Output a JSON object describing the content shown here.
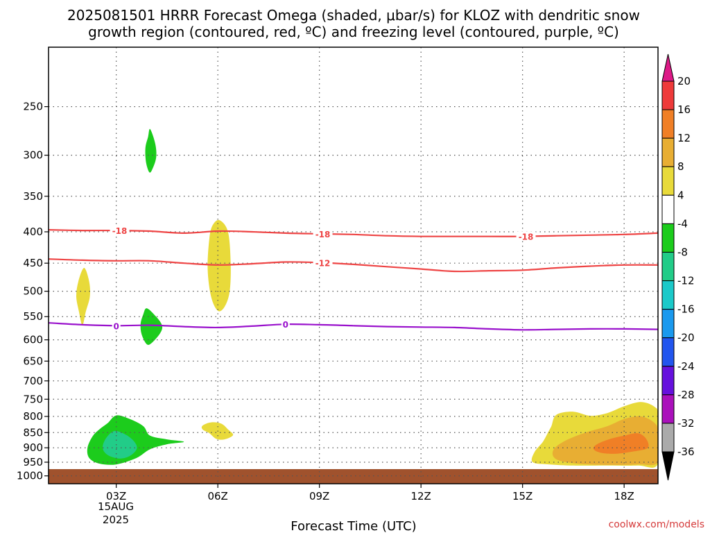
{
  "chart_data": {
    "type": "heatmap",
    "title_line1": "2025081501 HRRR Forecast Omega (shaded, μbar/s) for KLOZ with dendritic snow",
    "title_line2": "growth region (contoured, red, ºC) and freezing level (contoured, purple, ºC)",
    "xlabel": "Forecast Time (UTC)",
    "credit": "coolwx.com/models",
    "x_ticks": [
      {
        "h": 3,
        "label": "03Z"
      },
      {
        "h": 6,
        "label": "06Z"
      },
      {
        "h": 9,
        "label": "09Z"
      },
      {
        "h": 12,
        "label": "12Z"
      },
      {
        "h": 15,
        "label": "15Z"
      },
      {
        "h": 18,
        "label": "18Z"
      }
    ],
    "x_date_lines": [
      "15AUG",
      "2025"
    ],
    "xlim": [
      1,
      19
    ],
    "y_ticks": [
      250,
      300,
      350,
      400,
      450,
      500,
      550,
      600,
      650,
      700,
      750,
      800,
      850,
      900,
      950,
      1000
    ],
    "y_axis_log": true,
    "ylim_hpa": [
      200,
      1030
    ],
    "grid": true,
    "ground_level_hpa": 975,
    "colorbar": {
      "labels": [
        "20",
        "16",
        "12",
        "8",
        "4",
        "-4",
        "-8",
        "-12",
        "-16",
        "-20",
        "-24",
        "-28",
        "-32",
        "-36"
      ],
      "colors": [
        "#dd1a87",
        "#ee3a3a",
        "#f07f26",
        "#e8ae33",
        "#e8da3a",
        "#ffffff",
        "#1ccc1c",
        "#22cc88",
        "#1bc9c9",
        "#1a99ee",
        "#2255ee",
        "#6611dd",
        "#aa11bb",
        "#aaaaaa",
        "#000000"
      ]
    },
    "contours": [
      {
        "name": "-18",
        "color": "#ee4444",
        "points": [
          [
            1,
            397
          ],
          [
            2,
            398
          ],
          [
            3,
            398
          ],
          [
            4,
            399
          ],
          [
            5,
            402
          ],
          [
            6,
            399
          ],
          [
            7,
            400
          ],
          [
            8,
            402
          ],
          [
            9,
            403
          ],
          [
            10,
            404
          ],
          [
            11,
            406
          ],
          [
            12,
            407
          ],
          [
            13,
            407
          ],
          [
            14,
            407
          ],
          [
            15,
            407
          ],
          [
            16,
            406
          ],
          [
            17,
            405
          ],
          [
            18,
            404
          ],
          [
            19,
            402
          ]
        ],
        "labels": [
          {
            "h": 3.1,
            "text": "-18"
          },
          {
            "h": 9.1,
            "text": "-18"
          },
          {
            "h": 15.1,
            "text": "-18"
          }
        ]
      },
      {
        "name": "-12",
        "color": "#ee4444",
        "points": [
          [
            1,
            443
          ],
          [
            2,
            445
          ],
          [
            3,
            446
          ],
          [
            4,
            446
          ],
          [
            5,
            450
          ],
          [
            6,
            453
          ],
          [
            7,
            451
          ],
          [
            8,
            448
          ],
          [
            9,
            449
          ],
          [
            10,
            452
          ],
          [
            11,
            456
          ],
          [
            12,
            460
          ],
          [
            13,
            464
          ],
          [
            14,
            463
          ],
          [
            15,
            462
          ],
          [
            16,
            458
          ],
          [
            17,
            455
          ],
          [
            18,
            453
          ],
          [
            19,
            453
          ]
        ],
        "labels": [
          {
            "h": 9.1,
            "text": "-12"
          }
        ]
      },
      {
        "name": "0",
        "color": "#9911cc",
        "points": [
          [
            1,
            563
          ],
          [
            2,
            567
          ],
          [
            3,
            569
          ],
          [
            4,
            568
          ],
          [
            5,
            571
          ],
          [
            6,
            573
          ],
          [
            7,
            570
          ],
          [
            8,
            566
          ],
          [
            9,
            567
          ],
          [
            10,
            569
          ],
          [
            11,
            571
          ],
          [
            12,
            572
          ],
          [
            13,
            573
          ],
          [
            14,
            576
          ],
          [
            15,
            578
          ],
          [
            16,
            577
          ],
          [
            17,
            576
          ],
          [
            18,
            576
          ],
          [
            19,
            577
          ]
        ],
        "labels": [
          {
            "h": 3.0,
            "text": "0"
          },
          {
            "h": 8.0,
            "text": "0"
          }
        ]
      }
    ],
    "shaded_regions": [
      {
        "value": 4,
        "color": "#e8da3a",
        "points": [
          [
            2.05,
            458
          ],
          [
            2.2,
            482
          ],
          [
            2.22,
            510
          ],
          [
            2.1,
            540
          ],
          [
            2.0,
            568
          ],
          [
            1.9,
            540
          ],
          [
            1.82,
            510
          ],
          [
            1.88,
            482
          ]
        ]
      },
      {
        "value": 4,
        "color": "#e8da3a",
        "points": [
          [
            6.05,
            383
          ],
          [
            6.3,
            400
          ],
          [
            6.38,
            450
          ],
          [
            6.35,
            500
          ],
          [
            6.2,
            530
          ],
          [
            6.0,
            538
          ],
          [
            5.8,
            510
          ],
          [
            5.7,
            460
          ],
          [
            5.75,
            410
          ],
          [
            5.85,
            390
          ]
        ]
      },
      {
        "value": 4,
        "color": "#e8da3a",
        "points": [
          [
            5.55,
            828
          ],
          [
            5.8,
            818
          ],
          [
            6.1,
            822
          ],
          [
            6.3,
            840
          ],
          [
            6.45,
            858
          ],
          [
            6.2,
            872
          ],
          [
            5.95,
            870
          ],
          [
            5.75,
            852
          ],
          [
            5.55,
            840
          ]
        ]
      },
      {
        "value": -4,
        "color": "#1ccc1c",
        "points": [
          [
            4.0,
            272
          ],
          [
            4.15,
            287
          ],
          [
            4.18,
            302
          ],
          [
            4.08,
            315
          ],
          [
            3.98,
            320
          ],
          [
            3.88,
            308
          ],
          [
            3.86,
            292
          ],
          [
            3.94,
            280
          ]
        ]
      },
      {
        "value": -4,
        "color": "#1ccc1c",
        "points": [
          [
            3.9,
            533
          ],
          [
            4.15,
            548
          ],
          [
            4.35,
            568
          ],
          [
            4.3,
            585
          ],
          [
            4.05,
            607
          ],
          [
            3.9,
            610
          ],
          [
            3.75,
            588
          ],
          [
            3.72,
            565
          ],
          [
            3.8,
            545
          ]
        ]
      },
      {
        "value": -4,
        "color": "#1ccc1c",
        "points": [
          [
            2.75,
            820
          ],
          [
            3.0,
            797
          ],
          [
            3.4,
            808
          ],
          [
            3.8,
            830
          ],
          [
            4.0,
            860
          ],
          [
            4.5,
            872
          ],
          [
            5.0,
            880
          ],
          [
            4.5,
            888
          ],
          [
            4.0,
            905
          ],
          [
            3.6,
            935
          ],
          [
            3.0,
            958
          ],
          [
            2.5,
            955
          ],
          [
            2.2,
            935
          ],
          [
            2.15,
            900
          ],
          [
            2.3,
            862
          ],
          [
            2.5,
            840
          ]
        ]
      },
      {
        "value": -8,
        "color": "#22cc88",
        "points": [
          [
            2.95,
            845
          ],
          [
            3.3,
            858
          ],
          [
            3.55,
            882
          ],
          [
            3.6,
            905
          ],
          [
            3.4,
            928
          ],
          [
            3.1,
            937
          ],
          [
            2.75,
            925
          ],
          [
            2.6,
            900
          ],
          [
            2.7,
            868
          ]
        ]
      },
      {
        "value": 4,
        "color": "#e8da3a",
        "points": [
          [
            15.85,
            830
          ],
          [
            16.0,
            795
          ],
          [
            16.5,
            786
          ],
          [
            17.0,
            798
          ],
          [
            17.5,
            790
          ],
          [
            18.0,
            770
          ],
          [
            18.5,
            758
          ],
          [
            18.9,
            772
          ],
          [
            19.0,
            800
          ],
          [
            19.0,
            955
          ],
          [
            18.4,
            962
          ],
          [
            17.5,
            962
          ],
          [
            16.5,
            962
          ],
          [
            15.8,
            958
          ],
          [
            15.3,
            950
          ],
          [
            15.35,
            915
          ],
          [
            15.6,
            880
          ],
          [
            15.75,
            850
          ]
        ]
      },
      {
        "value": 8,
        "color": "#e8ae33",
        "points": [
          [
            16.2,
            880
          ],
          [
            16.8,
            852
          ],
          [
            17.5,
            830
          ],
          [
            18.0,
            808
          ],
          [
            18.5,
            800
          ],
          [
            18.9,
            820
          ],
          [
            19.0,
            850
          ],
          [
            19.0,
            950
          ],
          [
            18.4,
            958
          ],
          [
            17.5,
            960
          ],
          [
            16.6,
            955
          ],
          [
            16.0,
            940
          ],
          [
            15.9,
            910
          ]
        ]
      },
      {
        "value": 12,
        "color": "#f07f26",
        "points": [
          [
            17.2,
            888
          ],
          [
            17.6,
            870
          ],
          [
            18.0,
            860
          ],
          [
            18.4,
            852
          ],
          [
            18.65,
            870
          ],
          [
            18.7,
            900
          ],
          [
            18.3,
            912
          ],
          [
            17.8,
            920
          ],
          [
            17.35,
            918
          ],
          [
            17.1,
            905
          ]
        ]
      }
    ]
  }
}
